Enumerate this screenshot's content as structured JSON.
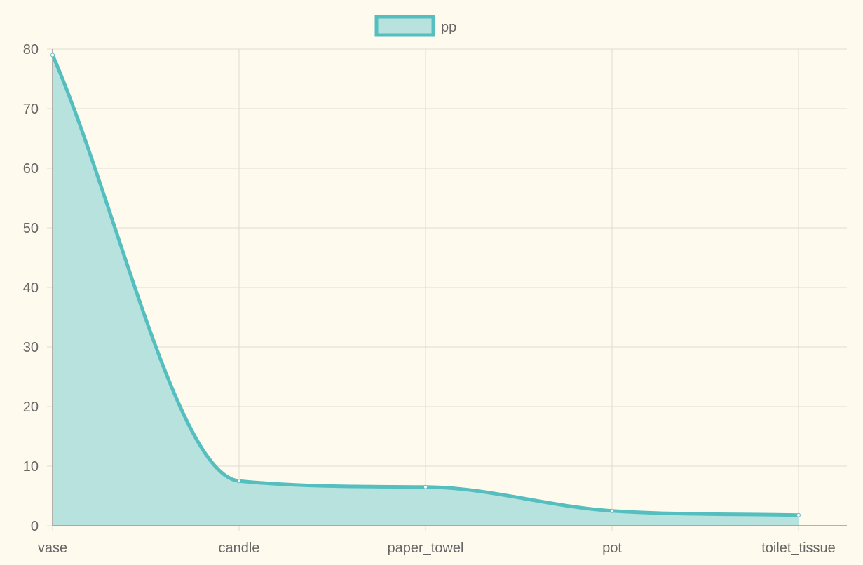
{
  "colors": {
    "background": "#fffaee",
    "series_line": "#55bfbf",
    "series_fill": "#b7e2de",
    "grid": "#dcdcd2",
    "axis": "#9a9a94",
    "text": "#666666"
  },
  "chart_data": {
    "type": "area",
    "title": "",
    "xlabel": "",
    "ylabel": "",
    "categories": [
      "vase",
      "candle",
      "paper_towel",
      "pot",
      "toilet_tissue"
    ],
    "series": [
      {
        "name": "pp",
        "values": [
          79,
          7.5,
          6.5,
          2.5,
          1.8
        ]
      }
    ],
    "ylim": [
      0,
      80
    ],
    "yticks": [
      0,
      10,
      20,
      30,
      40,
      50,
      60,
      70,
      80
    ],
    "grid": true,
    "legend_position": "top-center",
    "smooth": true,
    "fill": true
  }
}
